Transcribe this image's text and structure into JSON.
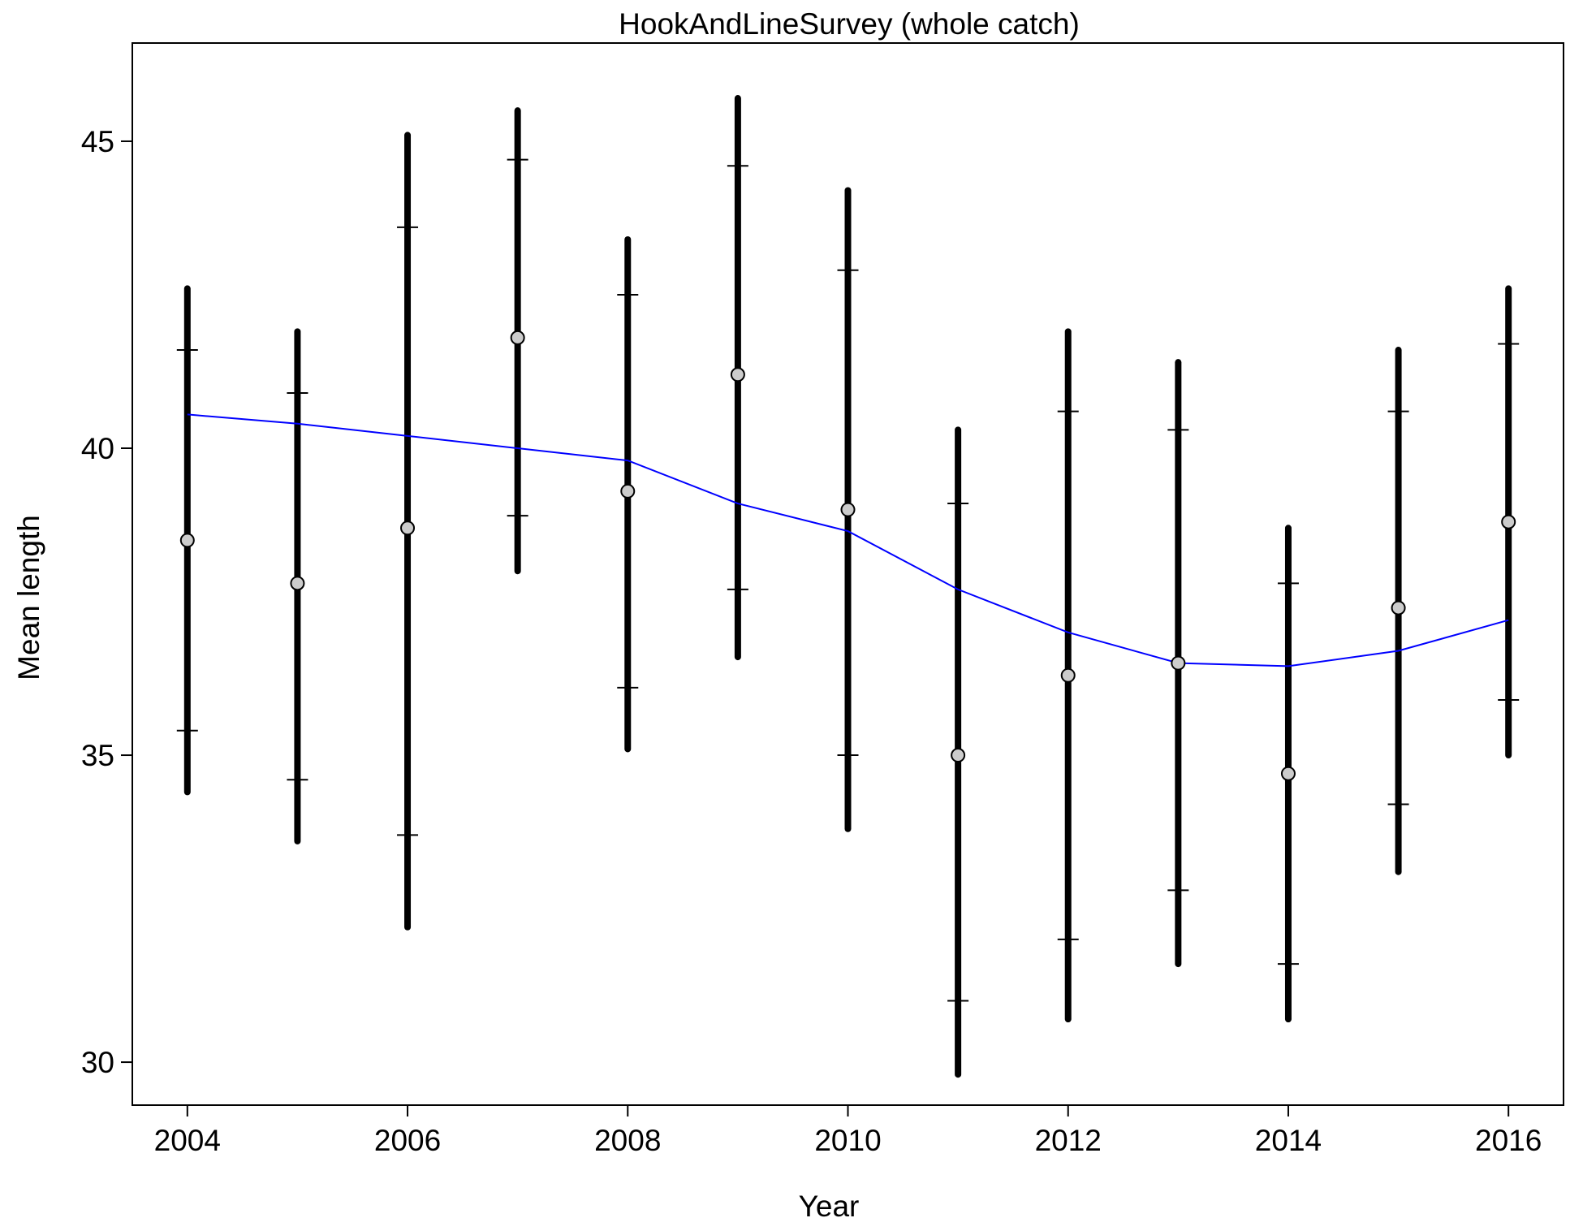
{
  "chart_data": {
    "type": "scatter",
    "title": "HookAndLineSurvey (whole catch)",
    "xlabel": "Year",
    "ylabel": "Mean length",
    "xlim": [
      2003.5,
      2016.5
    ],
    "ylim": [
      29.3,
      46.6
    ],
    "x_ticks": [
      "2004",
      "2006",
      "2008",
      "2010",
      "2012",
      "2014",
      "2016"
    ],
    "y_ticks": [
      "30",
      "35",
      "40",
      "45"
    ],
    "grid": false,
    "legend": "none",
    "colors": {
      "observed_fill": "#cccccc",
      "observed_stroke": "#000000",
      "interval": "#000000",
      "expected_line": "#0000ff"
    },
    "series": [
      {
        "years": [
          2004,
          2005,
          2006,
          2007,
          2008,
          2009,
          2010,
          2011,
          2012,
          2013,
          2014,
          2015,
          2016
        ],
        "values": [
          38.5,
          37.8,
          38.7,
          41.8,
          39.3,
          41.2,
          39.0,
          35.0,
          36.3,
          36.5,
          34.7,
          37.4,
          38.8
        ],
        "inner_lower": [
          35.4,
          34.6,
          33.7,
          38.9,
          36.1,
          37.7,
          35.0,
          31.0,
          32.0,
          32.8,
          31.6,
          34.2,
          35.9
        ],
        "inner_upper": [
          41.6,
          40.9,
          43.6,
          44.7,
          42.5,
          44.6,
          42.9,
          39.1,
          40.6,
          40.3,
          37.8,
          40.6,
          41.7
        ],
        "outer_lower": [
          34.4,
          33.6,
          32.2,
          38.0,
          35.1,
          36.6,
          33.8,
          29.8,
          30.7,
          31.6,
          30.7,
          33.1,
          35.0
        ],
        "outer_upper": [
          42.6,
          41.9,
          45.1,
          45.5,
          43.4,
          45.7,
          44.2,
          40.3,
          41.9,
          41.4,
          38.7,
          41.6,
          42.6
        ]
      },
      {
        "years": [
          2004,
          2005,
          2006,
          2007,
          2008,
          2009,
          2010,
          2011,
          2012,
          2013,
          2014,
          2015,
          2016
        ],
        "values": [
          40.55,
          40.4,
          40.2,
          40.0,
          39.8,
          39.1,
          38.65,
          37.7,
          37.0,
          36.5,
          36.45,
          36.7,
          37.2
        ]
      }
    ]
  }
}
